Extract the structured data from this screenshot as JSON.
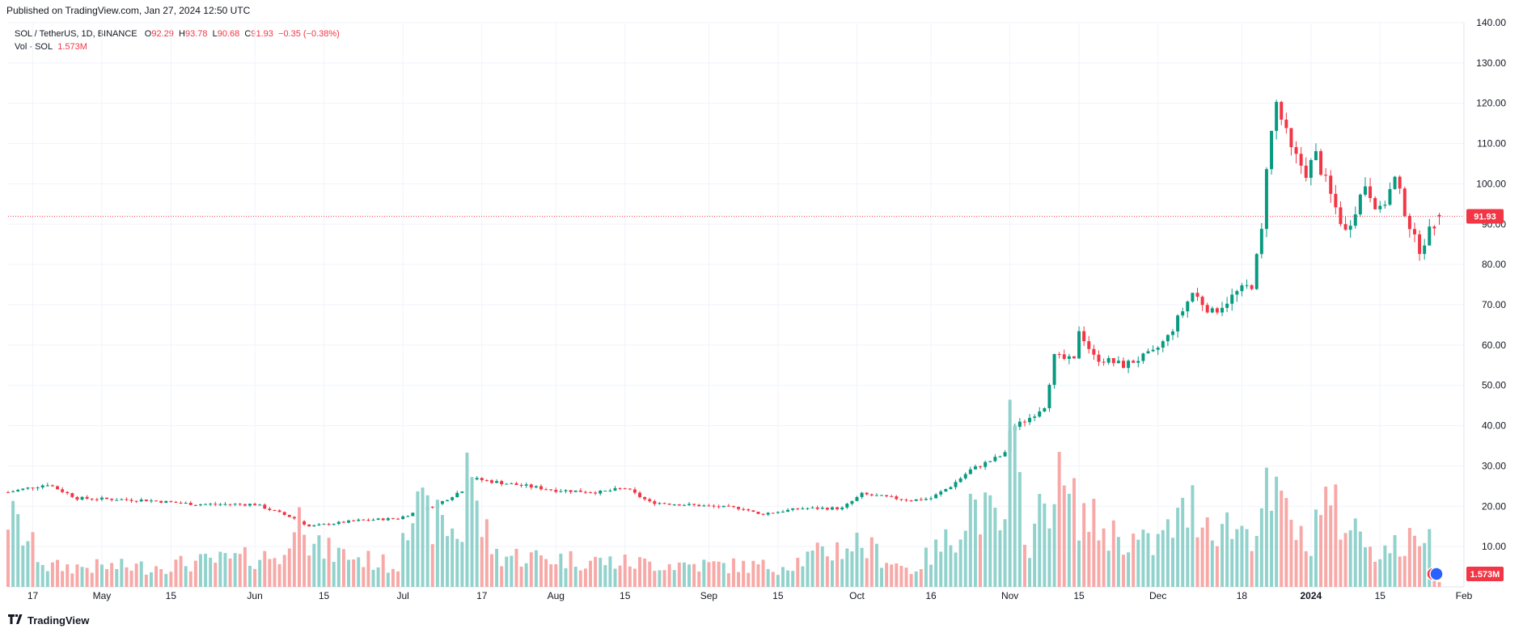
{
  "header": {
    "published": "Published on TradingView.com, Jan 27, 2024 12:50 UTC"
  },
  "legend": {
    "title": "SOL / TetherUS, 1D, BINANCE",
    "o_label": "O",
    "o": "92.29",
    "h_label": "H",
    "h": "93.78",
    "l_label": "L",
    "l": "90.68",
    "c_label": "C",
    "c": "91.93",
    "change": "−0.35 (−0.38%)",
    "vol_label": "Vol · SOL",
    "vol": "1.573M"
  },
  "footer": {
    "brand": "TradingView"
  },
  "colors": {
    "up": "#089981",
    "down": "#f23645",
    "up_vol": "#92d2cc",
    "down_vol": "#f7a9a7",
    "grid": "#f0f3fa"
  },
  "chart_data": {
    "type": "candlestick",
    "ylim": [
      0,
      140
    ],
    "y_ticks": [
      "10.00",
      "20.00",
      "30.00",
      "40.00",
      "50.00",
      "60.00",
      "70.00",
      "80.00",
      "90.00",
      "100.00",
      "110.00",
      "120.00",
      "130.00",
      "140.00"
    ],
    "x_ticks": [
      {
        "label": "17",
        "date": "2023-04-17"
      },
      {
        "label": "May",
        "date": "2023-05-01"
      },
      {
        "label": "15",
        "date": "2023-05-15"
      },
      {
        "label": "Jun",
        "date": "2023-06-01"
      },
      {
        "label": "15",
        "date": "2023-06-15"
      },
      {
        "label": "Jul",
        "date": "2023-07-01"
      },
      {
        "label": "17",
        "date": "2023-07-17"
      },
      {
        "label": "Aug",
        "date": "2023-08-01"
      },
      {
        "label": "15",
        "date": "2023-08-15"
      },
      {
        "label": "Sep",
        "date": "2023-09-01"
      },
      {
        "label": "15",
        "date": "2023-09-15"
      },
      {
        "label": "Oct",
        "date": "2023-10-01"
      },
      {
        "label": "16",
        "date": "2023-10-16"
      },
      {
        "label": "Nov",
        "date": "2023-11-01"
      },
      {
        "label": "15",
        "date": "2023-11-15"
      },
      {
        "label": "Dec",
        "date": "2023-12-01"
      },
      {
        "label": "18",
        "date": "2023-12-18"
      },
      {
        "label": "2024",
        "date": "2024-01-01",
        "bold": true
      },
      {
        "label": "15",
        "date": "2024-01-15"
      },
      {
        "label": "Feb",
        "date": "2024-02-01"
      }
    ],
    "x_range": [
      "2023-04-12",
      "2024-02-01"
    ],
    "last_price": "91.93",
    "last_volume": "1.573M",
    "price_keypoints": [
      [
        "2023-04-12",
        23.5
      ],
      [
        "2023-04-20",
        25.5
      ],
      [
        "2023-04-26",
        22
      ],
      [
        "2023-05-10",
        21.5
      ],
      [
        "2023-05-20",
        20.5
      ],
      [
        "2023-06-01",
        20.5
      ],
      [
        "2023-06-09",
        17
      ],
      [
        "2023-06-12",
        15
      ],
      [
        "2023-06-22",
        16.5
      ],
      [
        "2023-06-30",
        17
      ],
      [
        "2023-07-08",
        20.5
      ],
      [
        "2023-07-13",
        24
      ],
      [
        "2023-07-14",
        27
      ],
      [
        "2023-07-20",
        26
      ],
      [
        "2023-08-01",
        24
      ],
      [
        "2023-08-10",
        23.5
      ],
      [
        "2023-08-15",
        24.5
      ],
      [
        "2023-08-20",
        21
      ],
      [
        "2023-09-01",
        20
      ],
      [
        "2023-09-08",
        19.5
      ],
      [
        "2023-09-11",
        18
      ],
      [
        "2023-09-20",
        19.5
      ],
      [
        "2023-09-28",
        19.5
      ],
      [
        "2023-10-02",
        23
      ],
      [
        "2023-10-12",
        21.5
      ],
      [
        "2023-10-16",
        22
      ],
      [
        "2023-10-20",
        25
      ],
      [
        "2023-10-24",
        29
      ],
      [
        "2023-10-31",
        33
      ],
      [
        "2023-11-01",
        39
      ],
      [
        "2023-11-05",
        42
      ],
      [
        "2023-11-08",
        45
      ],
      [
        "2023-11-10",
        57
      ],
      [
        "2023-11-14",
        56
      ],
      [
        "2023-11-15",
        64
      ],
      [
        "2023-11-18",
        57
      ],
      [
        "2023-11-24",
        55
      ],
      [
        "2023-11-30",
        58
      ],
      [
        "2023-12-03",
        62
      ],
      [
        "2023-12-08",
        73
      ],
      [
        "2023-12-12",
        68
      ],
      [
        "2023-12-17",
        73
      ],
      [
        "2023-12-20",
        75
      ],
      [
        "2023-12-22",
        88
      ],
      [
        "2023-12-23",
        105
      ],
      [
        "2023-12-25",
        120
      ],
      [
        "2023-12-28",
        108
      ],
      [
        "2023-12-31",
        103
      ],
      [
        "2024-01-02",
        107
      ],
      [
        "2024-01-05",
        97
      ],
      [
        "2024-01-08",
        88
      ],
      [
        "2024-01-12",
        100
      ],
      [
        "2024-01-15",
        93
      ],
      [
        "2024-01-18",
        101
      ],
      [
        "2024-01-22",
        86
      ],
      [
        "2024-01-23",
        84
      ],
      [
        "2024-01-27",
        91.93
      ]
    ],
    "volume_keypoints": [
      [
        "2023-04-12",
        18
      ],
      [
        "2023-04-20",
        5
      ],
      [
        "2023-05-10",
        5
      ],
      [
        "2023-06-08",
        8
      ],
      [
        "2023-06-10",
        32
      ],
      [
        "2023-06-12",
        10
      ],
      [
        "2023-06-30",
        5
      ],
      [
        "2023-07-01",
        20
      ],
      [
        "2023-07-13",
        13
      ],
      [
        "2023-07-14",
        36
      ],
      [
        "2023-07-16",
        18
      ],
      [
        "2023-07-20",
        8
      ],
      [
        "2023-08-15",
        6
      ],
      [
        "2023-09-15",
        5
      ],
      [
        "2023-10-01",
        11
      ],
      [
        "2023-10-12",
        4
      ],
      [
        "2023-10-20",
        12
      ],
      [
        "2023-10-24",
        21
      ],
      [
        "2023-10-31",
        14
      ],
      [
        "2023-11-01",
        36
      ],
      [
        "2023-11-05",
        11
      ],
      [
        "2023-11-10",
        27
      ],
      [
        "2023-11-14",
        20
      ],
      [
        "2023-11-20",
        14
      ],
      [
        "2023-11-30",
        10
      ],
      [
        "2023-12-08",
        20
      ],
      [
        "2023-12-12",
        16
      ],
      [
        "2023-12-20",
        14
      ],
      [
        "2023-12-23",
        22
      ],
      [
        "2023-12-28",
        18
      ],
      [
        "2023-12-31",
        8
      ],
      [
        "2024-01-03",
        22
      ],
      [
        "2024-01-08",
        16
      ],
      [
        "2024-01-15",
        9
      ],
      [
        "2024-01-22",
        11
      ],
      [
        "2024-01-24",
        16
      ],
      [
        "2024-01-27",
        2
      ]
    ]
  }
}
